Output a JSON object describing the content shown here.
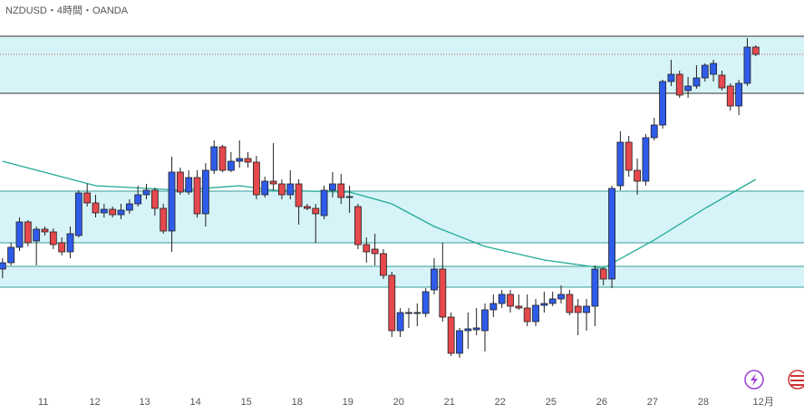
{
  "chart_data": {
    "type": "candlestick",
    "title": "NZDUSD・4時間・OANDA",
    "xlim": [
      -0.3,
      94.7
    ],
    "ylim": [
      43,
      500
    ],
    "xticks": [
      {
        "value": 4.8,
        "label": "11"
      },
      {
        "value": 10.9,
        "label": "12"
      },
      {
        "value": 16.8,
        "label": "13"
      },
      {
        "value": 22.8,
        "label": "14"
      },
      {
        "value": 28.8,
        "label": "15"
      },
      {
        "value": 34.8,
        "label": "18"
      },
      {
        "value": 40.8,
        "label": "19"
      },
      {
        "value": 46.8,
        "label": "20"
      },
      {
        "value": 52.8,
        "label": "21"
      },
      {
        "value": 58.8,
        "label": "22"
      },
      {
        "value": 64.8,
        "label": "25"
      },
      {
        "value": 70.8,
        "label": "26"
      },
      {
        "value": 76.8,
        "label": "27"
      },
      {
        "value": 82.8,
        "label": "28"
      },
      {
        "value": 89.9,
        "label": "12月"
      }
    ],
    "up_color": "#2f5bea",
    "down_color": "#e5484d",
    "open": [
      203,
      210,
      227,
      255,
      234,
      247,
      244,
      232,
      222,
      240,
      287,
      276,
      265,
      269,
      263,
      268,
      275,
      285,
      290,
      270,
      245,
      310,
      288,
      304,
      264,
      312,
      338,
      312,
      322,
      325,
      321,
      285,
      300,
      297,
      285,
      297,
      272,
      270,
      262,
      290,
      297,
      282,
      272,
      230,
      225,
      220,
      196,
      135,
      154,
      154,
      154,
      180,
      203,
      150,
      110,
      135,
      136,
      135,
      158,
      165,
      175,
      162,
      160,
      145,
      163,
      165,
      170,
      175,
      162,
      155,
      162,
      203,
      192,
      295,
      343,
      312,
      300,
      348,
      362,
      410,
      418,
      400,
      405,
      414,
      418,
      417,
      405,
      383,
      408,
      448
    ],
    "high": [
      215,
      232,
      260,
      257,
      250,
      250,
      248,
      238,
      250,
      290,
      297,
      285,
      275,
      272,
      275,
      280,
      295,
      297,
      293,
      275,
      327,
      315,
      312,
      312,
      320,
      345,
      340,
      332,
      345,
      332,
      328,
      305,
      342,
      302,
      312,
      302,
      275,
      275,
      295,
      310,
      308,
      295,
      275,
      238,
      242,
      225,
      200,
      160,
      160,
      165,
      182,
      215,
      232,
      155,
      138,
      155,
      160,
      165,
      175,
      180,
      180,
      175,
      175,
      170,
      178,
      178,
      185,
      180,
      170,
      170,
      207,
      205,
      295,
      355,
      350,
      325,
      352,
      370,
      412,
      434,
      422,
      415,
      428,
      430,
      434,
      422,
      408,
      412,
      458,
      450
    ],
    "low": [
      193,
      207,
      223,
      228,
      207,
      240,
      225,
      218,
      215,
      238,
      272,
      260,
      260,
      260,
      258,
      264,
      272,
      280,
      262,
      242,
      222,
      285,
      285,
      260,
      250,
      308,
      310,
      310,
      315,
      315,
      280,
      282,
      290,
      280,
      280,
      252,
      268,
      232,
      258,
      282,
      275,
      265,
      225,
      210,
      207,
      192,
      128,
      128,
      138,
      140,
      150,
      175,
      145,
      107,
      105,
      115,
      130,
      112,
      150,
      160,
      155,
      158,
      140,
      140,
      155,
      162,
      165,
      152,
      130,
      135,
      140,
      185,
      182,
      290,
      305,
      285,
      295,
      345,
      358,
      405,
      392,
      392,
      402,
      410,
      410,
      400,
      378,
      373,
      405,
      438
    ],
    "close": [
      210,
      227,
      255,
      232,
      247,
      244,
      230,
      222,
      242,
      287,
      276,
      265,
      269,
      263,
      268,
      275,
      285,
      290,
      270,
      245,
      310,
      288,
      304,
      264,
      312,
      338,
      312,
      322,
      325,
      321,
      285,
      300,
      297,
      285,
      297,
      272,
      270,
      264,
      290,
      297,
      282,
      283,
      230,
      222,
      220,
      196,
      135,
      155,
      155,
      155,
      178,
      203,
      150,
      110,
      135,
      137,
      138,
      158,
      165,
      175,
      162,
      160,
      145,
      163,
      165,
      170,
      175,
      155,
      155,
      162,
      203,
      192,
      292,
      343,
      312,
      300,
      348,
      362,
      410,
      418,
      395,
      405,
      414,
      428,
      430,
      403,
      383,
      408,
      448,
      440
    ],
    "ma": {
      "color": "#22ab94",
      "x": [
        0,
        11,
        21,
        28,
        32,
        41,
        46,
        51,
        57,
        64,
        71,
        77,
        83,
        89
      ],
      "values": [
        322,
        295,
        290,
        295,
        290,
        288,
        275,
        250,
        228,
        213,
        204,
        235,
        270,
        302
      ]
    }
  }
}
